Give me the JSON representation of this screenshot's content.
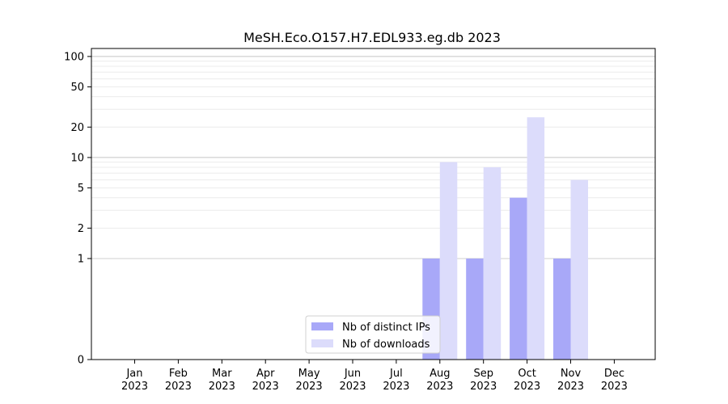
{
  "chart_data": {
    "type": "bar",
    "title": "MeSH.Eco.O157.H7.EDL933.eg.db 2023",
    "categories": [
      "Jan\n2023",
      "Feb\n2023",
      "Mar\n2023",
      "Apr\n2023",
      "May\n2023",
      "Jun\n2023",
      "Jul\n2023",
      "Aug\n2023",
      "Sep\n2023",
      "Oct\n2023",
      "Nov\n2023",
      "Dec\n2023"
    ],
    "series": [
      {
        "name": "Nb of distinct IPs",
        "values": [
          0,
          0,
          0,
          0,
          0,
          0,
          0,
          1,
          1,
          4,
          1,
          0
        ],
        "color": "#a8a8f8"
      },
      {
        "name": "Nb of downloads",
        "values": [
          0,
          0,
          0,
          0,
          0,
          0,
          0,
          9,
          8,
          25,
          6,
          0
        ],
        "color": "#dcdcfb"
      }
    ],
    "yscale": "symlog",
    "ylim": [
      0,
      120
    ],
    "yticks": [
      0,
      1,
      2,
      5,
      10,
      20,
      50,
      100
    ],
    "xlabel": "",
    "ylabel": "",
    "grid": true,
    "legend_position": "lower-center"
  }
}
